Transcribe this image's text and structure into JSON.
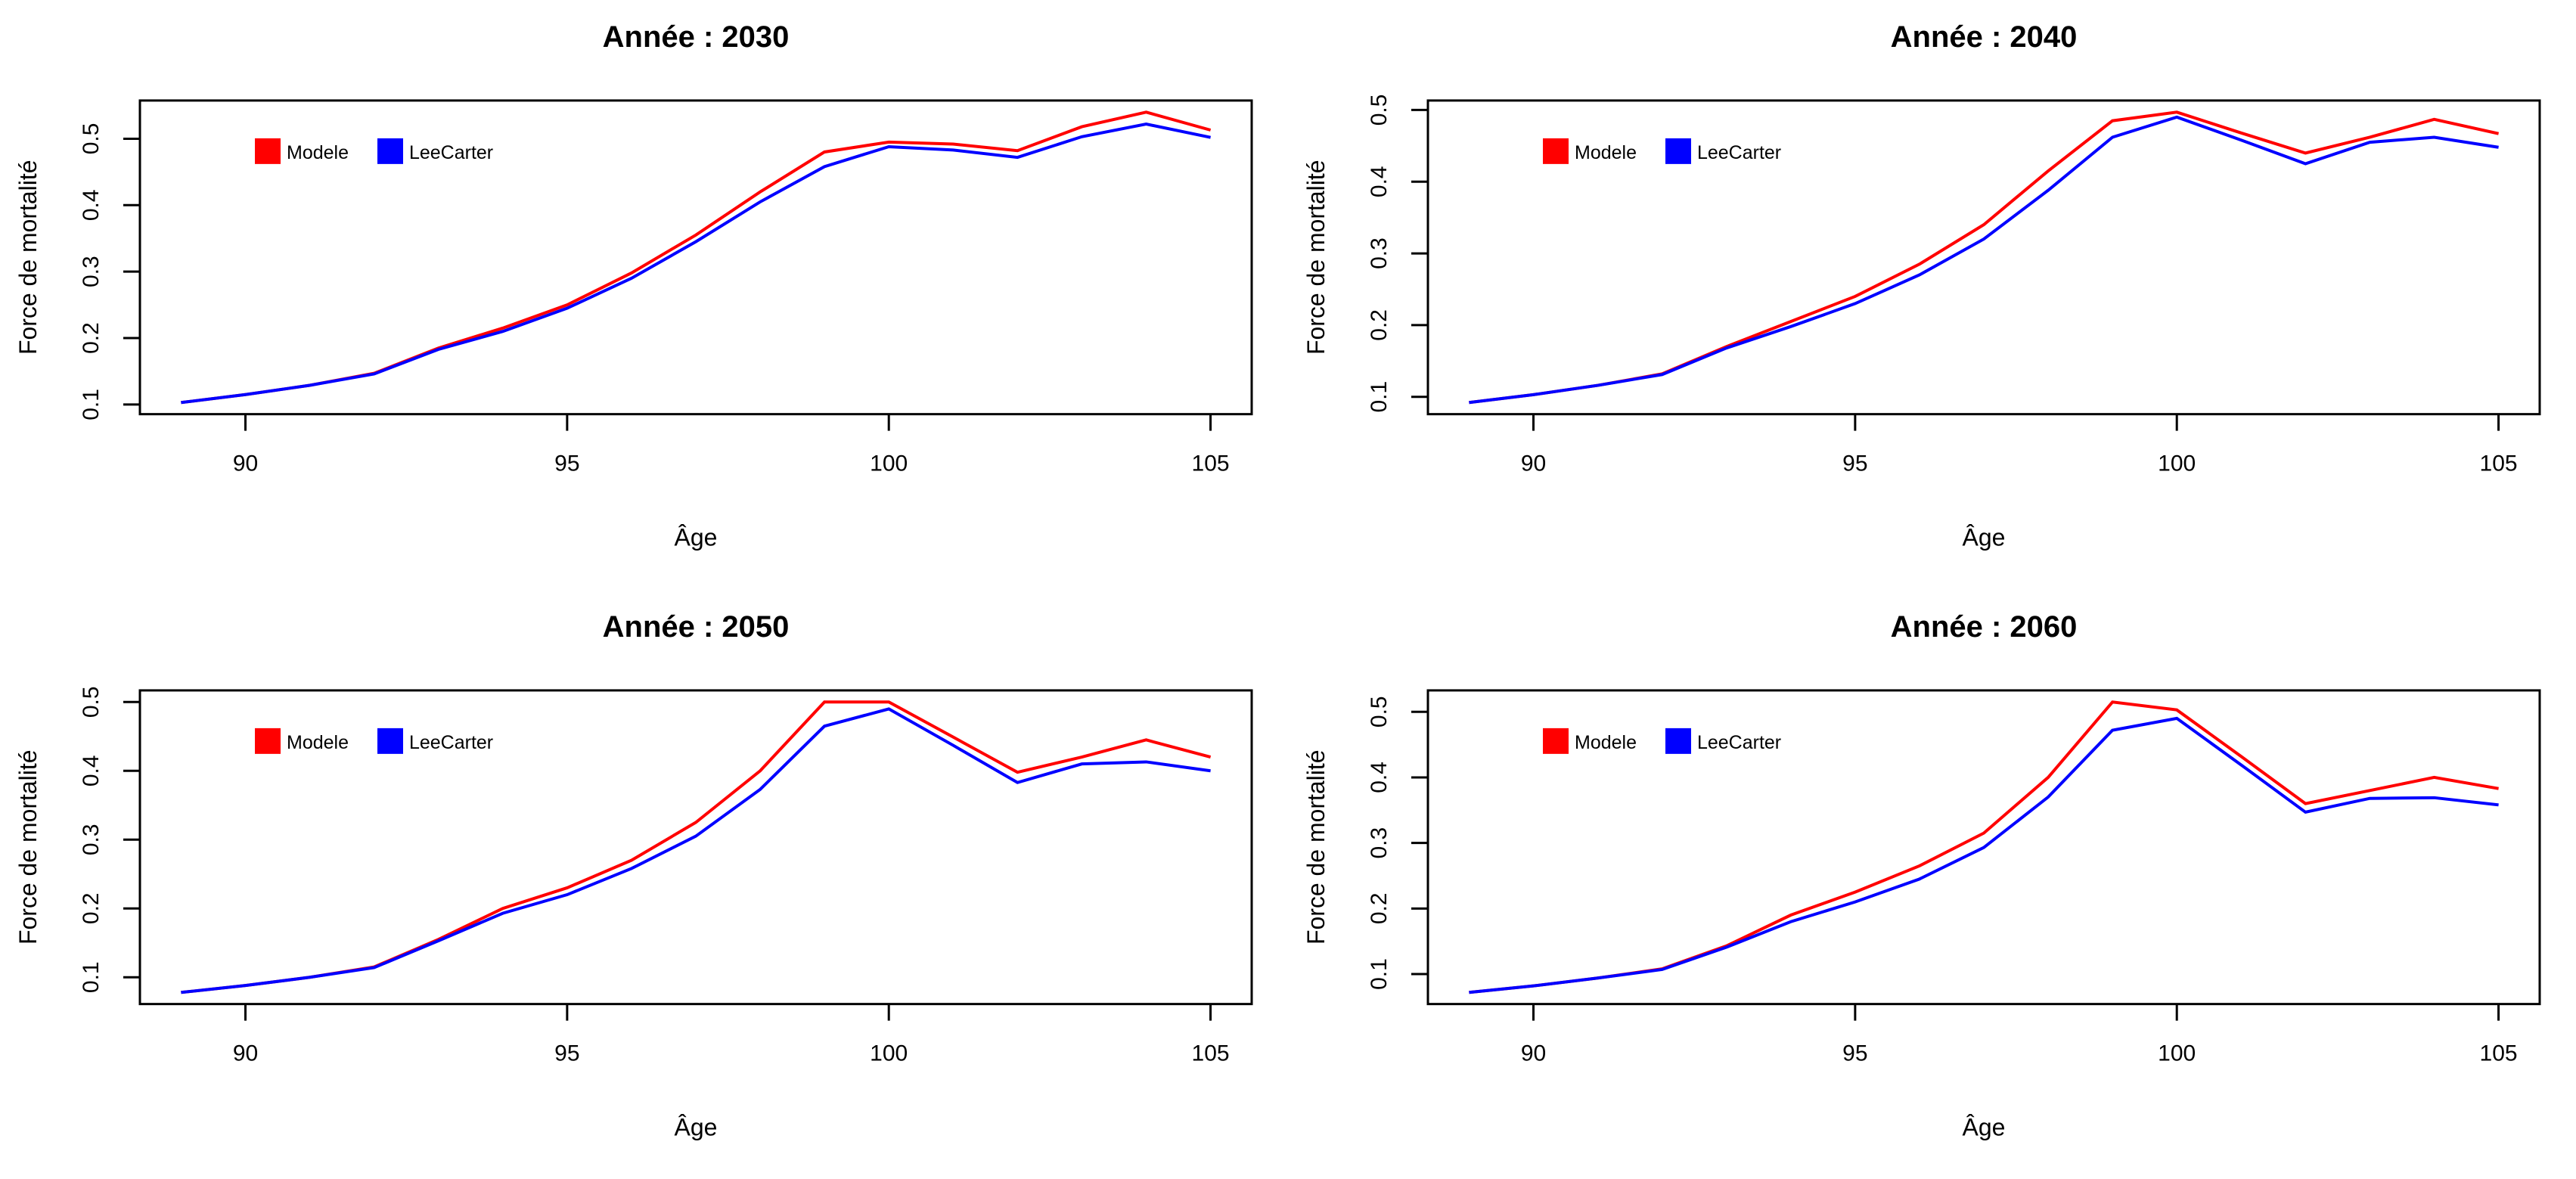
{
  "figure": {
    "background": "#ffffff",
    "text_color": "#000000",
    "series_colors": {
      "modele": "#ff0000",
      "leecarter": "#0000ff"
    }
  },
  "chart_data": [
    {
      "type": "line",
      "title": "Année : 2030",
      "xlabel": "Âge",
      "ylabel": "Force de mortalité",
      "grid": false,
      "legend_position": "top-left",
      "x_ticks": [
        90,
        95,
        100,
        105
      ],
      "y_ticks": [
        "0.1",
        "0.2",
        "0.3",
        "0.4",
        "0.5"
      ],
      "xlim": [
        88.36,
        105.64
      ],
      "ylim": [
        0.0855,
        0.5575
      ],
      "x": [
        89,
        90,
        91,
        92,
        93,
        94,
        95,
        96,
        97,
        98,
        99,
        100,
        101,
        102,
        103,
        104,
        105
      ],
      "series": [
        {
          "name": "Modele",
          "color": "#ff0000",
          "values": [
            0.103,
            0.115,
            0.129,
            0.147,
            0.185,
            0.215,
            0.25,
            0.298,
            0.355,
            0.42,
            0.48,
            0.495,
            0.492,
            0.482,
            0.518,
            0.54,
            0.513
          ]
        },
        {
          "name": "LeeCarter",
          "color": "#0000ff",
          "values": [
            0.103,
            0.115,
            0.129,
            0.146,
            0.183,
            0.21,
            0.245,
            0.29,
            0.345,
            0.405,
            0.458,
            0.488,
            0.483,
            0.472,
            0.503,
            0.522,
            0.502
          ]
        }
      ]
    },
    {
      "type": "line",
      "title": "Année : 2040",
      "xlabel": "Âge",
      "ylabel": "Force de mortalité",
      "grid": false,
      "legend_position": "top-left",
      "x_ticks": [
        90,
        95,
        100,
        105
      ],
      "y_ticks": [
        "0.1",
        "0.2",
        "0.3",
        "0.4",
        "0.5"
      ],
      "xlim": [
        88.36,
        105.64
      ],
      "ylim": [
        0.0758,
        0.5132
      ],
      "x": [
        89,
        90,
        91,
        92,
        93,
        94,
        95,
        96,
        97,
        98,
        99,
        100,
        101,
        102,
        103,
        104,
        105
      ],
      "series": [
        {
          "name": "Modele",
          "color": "#ff0000",
          "values": [
            0.092,
            0.103,
            0.116,
            0.132,
            0.17,
            0.205,
            0.24,
            0.285,
            0.34,
            0.415,
            0.485,
            0.497,
            0.468,
            0.44,
            0.462,
            0.487,
            0.467
          ]
        },
        {
          "name": "LeeCarter",
          "color": "#0000ff",
          "values": [
            0.092,
            0.103,
            0.116,
            0.131,
            0.168,
            0.198,
            0.23,
            0.27,
            0.32,
            0.388,
            0.462,
            0.49,
            0.458,
            0.425,
            0.455,
            0.462,
            0.448
          ]
        }
      ]
    },
    {
      "type": "line",
      "title": "Année : 2050",
      "xlabel": "Âge",
      "ylabel": "Force de mortalité",
      "grid": false,
      "legend_position": "top-left",
      "x_ticks": [
        90,
        95,
        100,
        105
      ],
      "y_ticks": [
        "0.1",
        "0.2",
        "0.3",
        "0.4",
        "0.5"
      ],
      "xlim": [
        88.36,
        105.64
      ],
      "ylim": [
        0.0611,
        0.5169
      ],
      "x": [
        89,
        90,
        91,
        92,
        93,
        94,
        95,
        96,
        97,
        98,
        99,
        100,
        101,
        102,
        103,
        104,
        105
      ],
      "series": [
        {
          "name": "Modele",
          "color": "#ff0000",
          "values": [
            0.078,
            0.088,
            0.1,
            0.115,
            0.155,
            0.2,
            0.23,
            0.27,
            0.325,
            0.4,
            0.5,
            0.5,
            0.449,
            0.398,
            0.42,
            0.445,
            0.42
          ]
        },
        {
          "name": "LeeCarter",
          "color": "#0000ff",
          "values": [
            0.078,
            0.088,
            0.1,
            0.114,
            0.153,
            0.193,
            0.22,
            0.258,
            0.305,
            0.373,
            0.465,
            0.49,
            0.437,
            0.383,
            0.41,
            0.413,
            0.4
          ]
        }
      ]
    },
    {
      "type": "line",
      "title": "Année : 2060",
      "xlabel": "Âge",
      "ylabel": "Force de mortalité",
      "grid": false,
      "legend_position": "top-left",
      "x_ticks": [
        90,
        95,
        100,
        105
      ],
      "y_ticks": [
        "0.1",
        "0.2",
        "0.3",
        "0.4",
        "0.5"
      ],
      "xlim": [
        88.36,
        105.64
      ],
      "ylim": [
        0.0543,
        0.5327
      ],
      "x": [
        89,
        90,
        91,
        92,
        93,
        94,
        95,
        96,
        97,
        98,
        99,
        100,
        101,
        102,
        103,
        104,
        105
      ],
      "series": [
        {
          "name": "Modele",
          "color": "#ff0000",
          "values": [
            0.072,
            0.082,
            0.094,
            0.108,
            0.143,
            0.19,
            0.225,
            0.265,
            0.315,
            0.4,
            0.515,
            0.503,
            0.432,
            0.36,
            0.38,
            0.4,
            0.383
          ]
        },
        {
          "name": "LeeCarter",
          "color": "#0000ff",
          "values": [
            0.072,
            0.082,
            0.094,
            0.107,
            0.141,
            0.18,
            0.21,
            0.245,
            0.293,
            0.37,
            0.472,
            0.49,
            0.419,
            0.347,
            0.368,
            0.369,
            0.358
          ]
        }
      ]
    }
  ]
}
